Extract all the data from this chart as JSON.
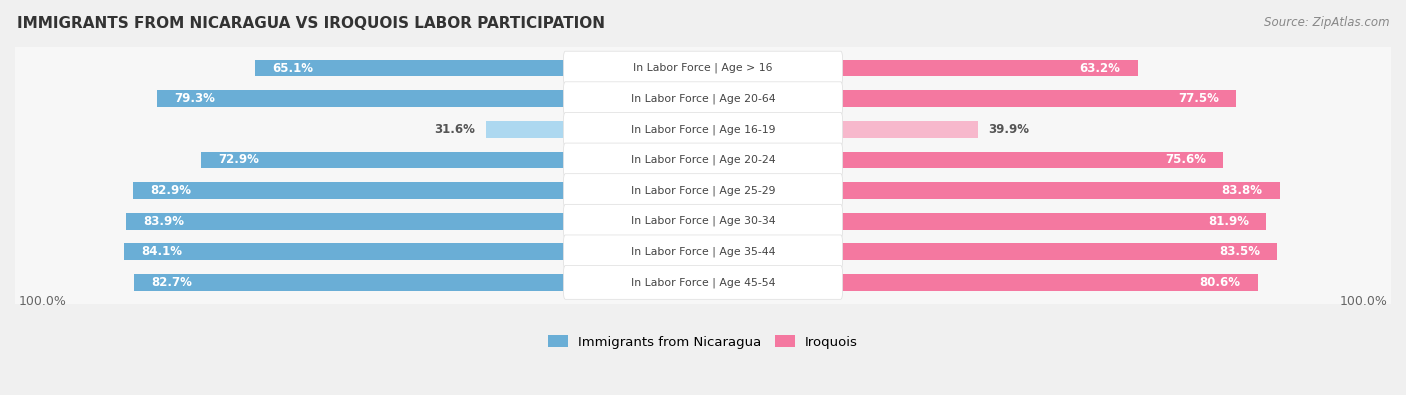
{
  "title": "IMMIGRANTS FROM NICARAGUA VS IROQUOIS LABOR PARTICIPATION",
  "source": "Source: ZipAtlas.com",
  "categories": [
    "In Labor Force | Age > 16",
    "In Labor Force | Age 20-64",
    "In Labor Force | Age 16-19",
    "In Labor Force | Age 20-24",
    "In Labor Force | Age 25-29",
    "In Labor Force | Age 30-34",
    "In Labor Force | Age 35-44",
    "In Labor Force | Age 45-54"
  ],
  "nicaragua_values": [
    65.1,
    79.3,
    31.6,
    72.9,
    82.9,
    83.9,
    84.1,
    82.7
  ],
  "iroquois_values": [
    63.2,
    77.5,
    39.9,
    75.6,
    83.8,
    81.9,
    83.5,
    80.6
  ],
  "nicaragua_color": "#6AAED6",
  "nicaragua_light_color": "#ADD8F0",
  "iroquois_color": "#F478A0",
  "iroquois_light_color": "#F7B8CC",
  "background_color": "#f0f0f0",
  "row_bg_color": "#f7f7f7",
  "label_bg_color": "#ffffff",
  "max_value": 100.0,
  "bar_height": 0.55,
  "legend_nicaragua": "Immigrants from Nicaragua",
  "legend_iroquois": "Iroquois"
}
